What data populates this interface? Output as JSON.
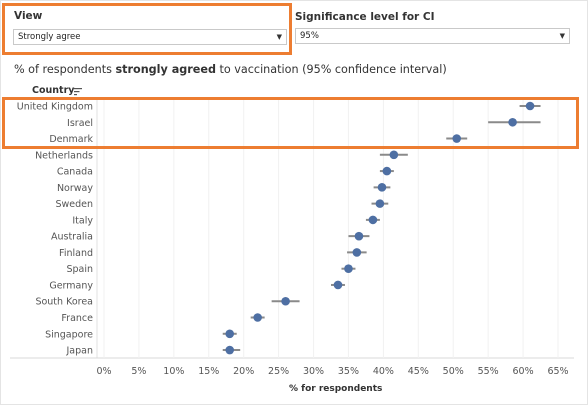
{
  "controls": {
    "view_label": "View",
    "view_value": "Strongly agree",
    "sig_label": "Significance level for CI",
    "sig_value": "95%"
  },
  "subtitle": {
    "pre": "% of respondents ",
    "bold": "strongly agreed",
    "post": " to vaccination (95% confidence interval)"
  },
  "country_header": "Country",
  "colors": {
    "accent": "#ed7d31",
    "dot": "#4e6fa3",
    "ci": "#8a8a8a"
  },
  "icons": {
    "sort": "sort-descending-icon",
    "caret": "caret-down-icon"
  },
  "chart_data": {
    "type": "scatter",
    "xlabel": "% for respondents",
    "xlim": [
      0,
      65
    ],
    "xticks": [
      "0%",
      "5%",
      "10%",
      "15%",
      "20%",
      "25%",
      "30%",
      "35%",
      "40%",
      "45%",
      "50%",
      "55%",
      "60%",
      "65%"
    ],
    "points": [
      {
        "country": "United Kingdom",
        "value": 61,
        "low": 59.5,
        "high": 62.5
      },
      {
        "country": "Israel",
        "value": 58.5,
        "low": 55,
        "high": 62.5
      },
      {
        "country": "Denmark",
        "value": 50.5,
        "low": 49,
        "high": 52
      },
      {
        "country": "Netherlands",
        "value": 41.5,
        "low": 39.5,
        "high": 43.5
      },
      {
        "country": "Canada",
        "value": 40.5,
        "low": 39.5,
        "high": 41.5
      },
      {
        "country": "Norway",
        "value": 39.8,
        "low": 38.6,
        "high": 41
      },
      {
        "country": "Sweden",
        "value": 39.5,
        "low": 38.3,
        "high": 40.7
      },
      {
        "country": "Italy",
        "value": 38.5,
        "low": 37.5,
        "high": 39.5
      },
      {
        "country": "Australia",
        "value": 36.5,
        "low": 35,
        "high": 38
      },
      {
        "country": "Finland",
        "value": 36.2,
        "low": 34.8,
        "high": 37.6
      },
      {
        "country": "Spain",
        "value": 35,
        "low": 34,
        "high": 36
      },
      {
        "country": "Germany",
        "value": 33.5,
        "low": 32.5,
        "high": 34.5
      },
      {
        "country": "South Korea",
        "value": 26,
        "low": 24,
        "high": 28
      },
      {
        "country": "France",
        "value": 22,
        "low": 21,
        "high": 23
      },
      {
        "country": "Singapore",
        "value": 18,
        "low": 17,
        "high": 19
      },
      {
        "country": "Japan",
        "value": 18,
        "low": 17,
        "high": 19.5
      }
    ],
    "highlighted_countries": [
      "United Kingdom",
      "Israel",
      "Denmark"
    ]
  }
}
